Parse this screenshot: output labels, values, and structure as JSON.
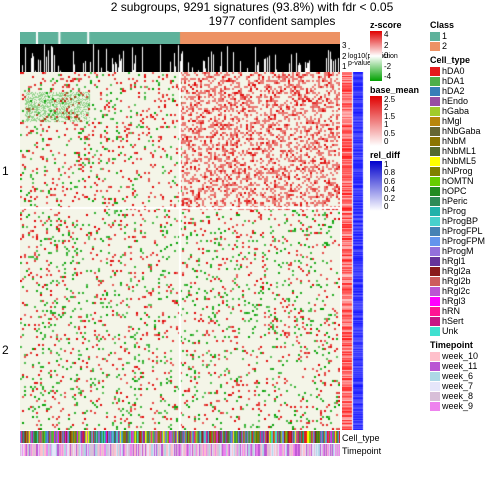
{
  "title": "2 subgroups, 9291 signatures (93.8%) with fdr < 0.05",
  "subtitle": "1977 confident samples",
  "class_bar": {
    "segments": [
      {
        "color": "#5fb29b",
        "width": 0.5
      },
      {
        "color": "#ed9264",
        "width": 0.5
      }
    ],
    "gap_color": "#ffffff",
    "gaps": [
      0.05,
      0.12,
      0.21
    ]
  },
  "pval_bar": {
    "background": "#000000",
    "label": "-log10(prediction\np-value)",
    "axis": [
      "1",
      "2",
      "3"
    ]
  },
  "heatmap": {
    "type": "heatmap",
    "rows": 200,
    "cols": 320,
    "row_groups": [
      {
        "label": "1",
        "frac": 0.38
      },
      {
        "label": "2",
        "frac": 0.62
      }
    ],
    "colorscale": {
      "low": "#00a000",
      "mid": "#f4f5e8",
      "high": "#e00000"
    },
    "background": "#f4f5e8",
    "vsplit": 0.5
  },
  "col_annotations": [
    {
      "name": "Cell_type",
      "height": 12
    },
    {
      "name": "Timepoint",
      "height": 12
    }
  ],
  "side_annotations": [
    {
      "name": "base_mean",
      "width": 11
    },
    {
      "name": "rel_diff",
      "width": 11
    }
  ],
  "legends": {
    "zscore": {
      "title": "z-score",
      "low": "#00a000",
      "mid": "#ffffff",
      "high": "#e00000",
      "ticks": [
        "4",
        "2",
        "0",
        "-2",
        "-4"
      ]
    },
    "base_mean": {
      "title": "base_mean",
      "low": "#ffffff",
      "high": "#e00000",
      "ticks": [
        "2.5",
        "2",
        "1.5",
        "1",
        "0.5",
        "0"
      ]
    },
    "rel_diff": {
      "title": "rel_diff",
      "low": "#ffffff",
      "high": "#0000cc",
      "ticks": [
        "1",
        "0.8",
        "0.6",
        "0.4",
        "0.2",
        "0"
      ]
    },
    "class": {
      "title": "Class",
      "items": [
        {
          "label": "1",
          "color": "#5fb29b"
        },
        {
          "label": "2",
          "color": "#ed9264"
        }
      ]
    },
    "cell_type": {
      "title": "Cell_type",
      "items": [
        {
          "label": "hDA0",
          "color": "#e41a1c"
        },
        {
          "label": "hDA1",
          "color": "#4daf4a"
        },
        {
          "label": "hDA2",
          "color": "#377eb8"
        },
        {
          "label": "hEndo",
          "color": "#984ea3"
        },
        {
          "label": "hGaba",
          "color": "#a1cc2a"
        },
        {
          "label": "hMgl",
          "color": "#b8860b"
        },
        {
          "label": "hNbGaba",
          "color": "#666633"
        },
        {
          "label": "hNbM",
          "color": "#8b7500"
        },
        {
          "label": "hNbML1",
          "color": "#556b2f"
        },
        {
          "label": "hNbML5",
          "color": "#ffff00"
        },
        {
          "label": "hNProg",
          "color": "#808000"
        },
        {
          "label": "hOMTN",
          "color": "#66cd00"
        },
        {
          "label": "hOPC",
          "color": "#228b22"
        },
        {
          "label": "hPeric",
          "color": "#2e8b57"
        },
        {
          "label": "hProg",
          "color": "#20b2aa"
        },
        {
          "label": "hProgBP",
          "color": "#48d1cc"
        },
        {
          "label": "hProgFPL",
          "color": "#4682b4"
        },
        {
          "label": "hProgFPM",
          "color": "#6495ed"
        },
        {
          "label": "hProgM",
          "color": "#9370db"
        },
        {
          "label": "hRgl1",
          "color": "#663399"
        },
        {
          "label": "hRgl2a",
          "color": "#8b1a1a"
        },
        {
          "label": "hRgl2b",
          "color": "#cd5c5c"
        },
        {
          "label": "hRgl2c",
          "color": "#ba55d3"
        },
        {
          "label": "hRgl3",
          "color": "#ff00ff"
        },
        {
          "label": "hRN",
          "color": "#ff1493"
        },
        {
          "label": "hSert",
          "color": "#c71585"
        },
        {
          "label": "Unk",
          "color": "#40e0d0"
        }
      ]
    },
    "timepoint": {
      "title": "Timepoint",
      "items": [
        {
          "label": "week_10",
          "color": "#ffc0cb"
        },
        {
          "label": "week_11",
          "color": "#ba55d3"
        },
        {
          "label": "week_6",
          "color": "#add8e6"
        },
        {
          "label": "week_7",
          "color": "#e6e6fa"
        },
        {
          "label": "week_8",
          "color": "#d8bfd8"
        },
        {
          "label": "week_9",
          "color": "#ee82ee"
        }
      ]
    }
  },
  "fonts": {
    "title_size": 12,
    "legend_size": 9,
    "tick_size": 8
  }
}
